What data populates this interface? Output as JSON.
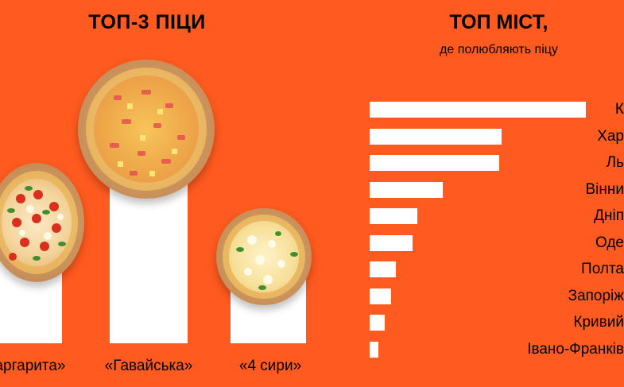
{
  "left_title": "ТОП-3 ПІЦИ",
  "right_title": "ТОП МІСТ,",
  "right_subtitle": "де полюбляють піцу",
  "chart_data": [
    {
      "type": "bar",
      "title": "ТОП-3 ПІЦИ",
      "categories": [
        "Маргарита",
        "«Гавайська»",
        "«4 сири»"
      ],
      "values": [
        2,
        3,
        1
      ],
      "category_labels": [
        "аргарита»",
        "«Гавайська»",
        "«4 сири»"
      ]
    },
    {
      "type": "bar",
      "orientation": "horizontal",
      "title": "ТОП МІСТ,",
      "subtitle": "де полюбляють піцу",
      "categories": [
        "К",
        "Хар",
        "Ль",
        "Вінни",
        "Дніп",
        "Оде",
        "Полта",
        "Запоріж",
        "Кривий",
        "Івано-Франків"
      ],
      "values": [
        100,
        61,
        60,
        34,
        22,
        20,
        12,
        10,
        7,
        4
      ]
    }
  ]
}
